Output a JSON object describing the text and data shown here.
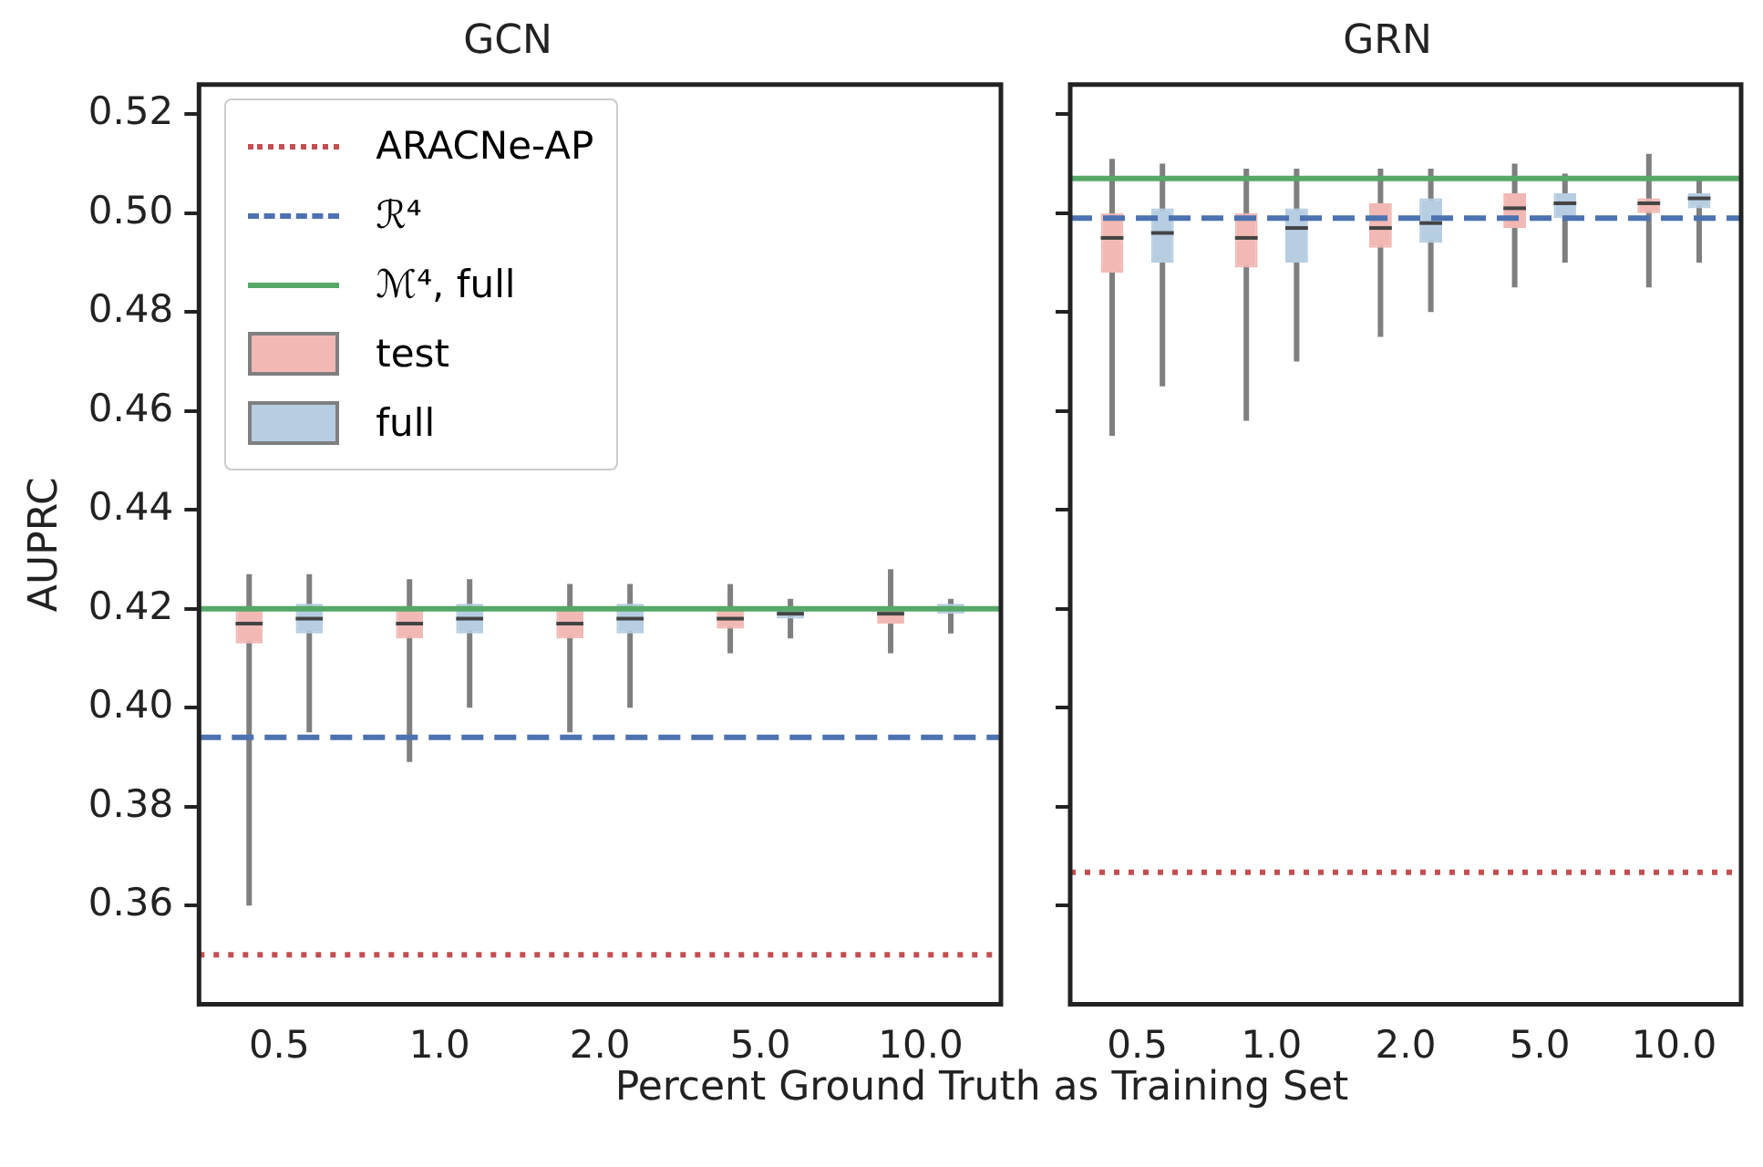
{
  "chart_data": [
    {
      "type": "box",
      "title": "GCN",
      "ylabel": "AUPRC",
      "xlabel": "Percent Ground Truth as Training Set",
      "categories": [
        "0.5",
        "1.0",
        "2.0",
        "5.0",
        "10.0"
      ],
      "series": [
        {
          "name": "test",
          "color": "#f2b8b4",
          "boxes": [
            {
              "low": 0.36,
              "q1": 0.413,
              "median": 0.417,
              "q3": 0.42,
              "high": 0.427
            },
            {
              "low": 0.389,
              "q1": 0.414,
              "median": 0.417,
              "q3": 0.42,
              "high": 0.426
            },
            {
              "low": 0.395,
              "q1": 0.414,
              "median": 0.417,
              "q3": 0.42,
              "high": 0.425
            },
            {
              "low": 0.411,
              "q1": 0.416,
              "median": 0.418,
              "q3": 0.42,
              "high": 0.425
            },
            {
              "low": 0.411,
              "q1": 0.417,
              "median": 0.419,
              "q3": 0.42,
              "high": 0.428
            }
          ]
        },
        {
          "name": "full",
          "color": "#b6cde2",
          "boxes": [
            {
              "low": 0.395,
              "q1": 0.415,
              "median": 0.418,
              "q3": 0.421,
              "high": 0.427
            },
            {
              "low": 0.4,
              "q1": 0.415,
              "median": 0.418,
              "q3": 0.421,
              "high": 0.426
            },
            {
              "low": 0.4,
              "q1": 0.415,
              "median": 0.418,
              "q3": 0.421,
              "high": 0.425
            },
            {
              "low": 0.414,
              "q1": 0.418,
              "median": 0.419,
              "q3": 0.42,
              "high": 0.422
            },
            {
              "low": 0.415,
              "q1": 0.419,
              "median": 0.42,
              "q3": 0.421,
              "high": 0.422
            }
          ]
        }
      ],
      "ylim": [
        0.34,
        0.526
      ],
      "yticks": [
        0.36,
        0.38,
        {
          "value": 0.4,
          "label": "0.40"
        },
        0.42,
        0.44,
        0.46,
        0.48,
        {
          "value": 0.5,
          "label": "0.50"
        },
        0.52
      ],
      "ref_lines": [
        {
          "axis": "y",
          "value": 0.35,
          "label": "ARACNe-AP",
          "color": "#c44e52",
          "line_style": "dotted"
        },
        {
          "axis": "y",
          "value": 0.394,
          "label": "ℛ⁴",
          "color": "#4c72b0",
          "line_style": "dashed"
        },
        {
          "axis": "y",
          "value": 0.42,
          "label": "ℳ⁴, full",
          "color": "#55a868",
          "line_style": "solid"
        }
      ],
      "legend": "top left"
    },
    {
      "type": "box",
      "title": "GRN",
      "categories": [
        "0.5",
        "1.0",
        "2.0",
        "5.0",
        "10.0"
      ],
      "series": [
        {
          "color": "#f2b8b4",
          "boxes": [
            {
              "low": 0.455,
              "q1": 0.488,
              "median": 0.495,
              "q3": 0.5,
              "high": 0.511
            },
            {
              "low": 0.458,
              "q1": 0.489,
              "median": 0.495,
              "q3": 0.5,
              "high": 0.509
            },
            {
              "low": 0.475,
              "q1": 0.493,
              "median": 0.497,
              "q3": 0.502,
              "high": 0.509
            },
            {
              "low": 0.485,
              "q1": 0.497,
              "median": 0.501,
              "q3": 0.504,
              "high": 0.51
            },
            {
              "low": 0.485,
              "q1": 0.5,
              "median": 0.502,
              "q3": 0.503,
              "high": 0.512
            }
          ]
        },
        {
          "color": "#b6cde2",
          "boxes": [
            {
              "low": 0.465,
              "q1": 0.49,
              "median": 0.496,
              "q3": 0.501,
              "high": 0.51
            },
            {
              "low": 0.47,
              "q1": 0.49,
              "median": 0.497,
              "q3": 0.501,
              "high": 0.509
            },
            {
              "low": 0.48,
              "q1": 0.494,
              "median": 0.498,
              "q3": 0.503,
              "high": 0.509
            },
            {
              "low": 0.49,
              "q1": 0.499,
              "median": 0.502,
              "q3": 0.504,
              "high": 0.508
            },
            {
              "low": 0.49,
              "q1": 0.501,
              "median": 0.503,
              "q3": 0.504,
              "high": 0.507
            }
          ]
        }
      ],
      "ylim": [
        0.34,
        0.526
      ],
      "tick_labels": "x",
      "yticks": [
        0.36,
        0.38,
        0.4,
        0.42,
        0.44,
        0.46,
        0.48,
        0.5,
        0.52
      ],
      "ref_lines": [
        {
          "axis": "y",
          "value": 0.3667,
          "color": "#c44e52",
          "line_style": "dotted"
        },
        {
          "axis": "y",
          "value": 0.499,
          "color": "#4c72b0",
          "line_style": "dashed"
        },
        {
          "axis": "y",
          "value": 0.507,
          "color": "#55a868",
          "line_style": "solid"
        }
      ]
    }
  ]
}
